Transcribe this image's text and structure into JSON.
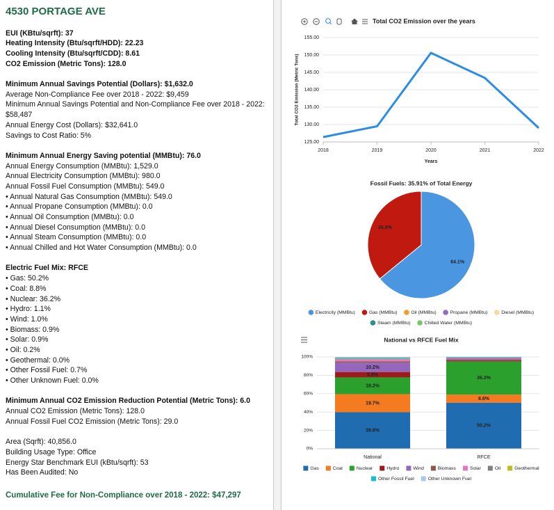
{
  "panel": {
    "title": "4530 PORTAGE AVE",
    "summary": [
      "EUI (KBtu/sqrft): 37",
      "Heating Intensity (Btu/sqrft/HDD): 22.23",
      "Cooling Intensity (Btu/sqrft/CDD): 8.61",
      "CO2 Emission (Metric Tons): 128.0"
    ],
    "sections": [
      {
        "heading": "Minimum Annual Savings Potential (Dollars): $1,632.0",
        "lines": [
          "Average Non-Compliance Fee over 2018 - 2022: $9,459",
          "Minimum Annual Savings Potential and Non-Compliance Fee over 2018 - 2022: $58,487",
          "Annual Energy Cost (Dollars): $32,641.0",
          "Savings to Cost Ratio: 5%"
        ]
      },
      {
        "heading": "Minimum Annual Energy Saving potential (MMBtu): 76.0",
        "lines": [
          "Annual Energy Consumption (MMBtu): 1,529.0",
          "Annual Electricity Consumption (MMBtu): 980.0",
          "Annual Fossil Fuel Consumption (MMBtu): 549.0",
          "• Annual Natural Gas Consumption (MMBtu): 549.0",
          "• Annual Propane Consumption (MMBtu): 0.0",
          "• Annual Oil Consumption (MMBtu): 0.0",
          "• Annual Diesel Consumption (MMBtu): 0.0",
          "• Annual Steam Consumption (MMBtu): 0.0",
          "• Annual Chilled and Hot Water Consumption (MMBtu): 0.0"
        ]
      },
      {
        "heading": "Electric Fuel Mix: RFCE",
        "lines": [
          "• Gas: 50.2%",
          "• Coal: 8.8%",
          "• Nuclear: 36.2%",
          "• Hydro: 1.1%",
          "• Wind: 1.0%",
          "• Biomass: 0.9%",
          "• Solar: 0.9%",
          "• Oil: 0.2%",
          "• Geothermal: 0.0%",
          "• Other Fossil Fuel: 0.7%",
          "• Other Unknown Fuel: 0.0%"
        ]
      },
      {
        "heading": "Minimum Annual CO2 Emission Reduction Potential (Metric Tons): 6.0",
        "lines": [
          "Annual CO2 Emission (Metric Tons): 128.0",
          "Annual Fossil Fuel CO2 Emission (Metric Tons): 29.0"
        ]
      }
    ],
    "details": [
      "Area (Sqrft): 40,856.0",
      "Building Usage Type: Office",
      "Energy Star Benchmark EUI (kBtu/sqrft): 53",
      "Has Been Audited: No"
    ],
    "footer": "Cumulative Fee for Non-Compliance over 2018 - 2022: $47,297"
  },
  "chart_data": [
    {
      "type": "line",
      "title": "Total CO2 Emission over the years",
      "categories": [
        "2018",
        "2019",
        "2020",
        "2021",
        "2022"
      ],
      "values": [
        126.4,
        129.5,
        150.6,
        143.4,
        129.0
      ],
      "color": "#2b8ce6",
      "x_label": "Years",
      "y_label": "Total CO2 Emission (Metric Tons)",
      "ylim": [
        125,
        155
      ],
      "yticks": [
        {
          "value": 125,
          "label": "125.00"
        },
        {
          "value": 130,
          "label": "130.00"
        },
        {
          "value": 135,
          "label": "135.00"
        },
        {
          "value": 140,
          "label": "140.00"
        },
        {
          "value": 145,
          "label": "145.00"
        },
        {
          "value": 150,
          "label": "150.00"
        },
        {
          "value": 155,
          "label": "155.00"
        }
      ],
      "grid": true
    },
    {
      "type": "pie",
      "title": "Fossil Fuels: 35.91% of Total Energy",
      "categories": [
        "Electricity (MMBtu)",
        "Gas (MMBtu)",
        "Oil (MMBtu)",
        "Propane (MMBtu)",
        "Diesel (MMBtu)",
        "Steam (MMBtu)",
        "Chilled Water (MMBtu)"
      ],
      "values": [
        64.1,
        35.9,
        0,
        0,
        0,
        0,
        0
      ],
      "value_labels": [
        "64.1%",
        "35.9%",
        null,
        null,
        null,
        null,
        null
      ],
      "colors": [
        "#4a96e0",
        "#c0190f",
        "#f39c26",
        "#8e6cc0",
        "#f5d9a0",
        "#2a8f8a",
        "#79c36a"
      ]
    },
    {
      "type": "bar",
      "title": "National vs RFCE Fuel Mix",
      "stacked": true,
      "categories": [
        "National",
        "RFCE"
      ],
      "series": [
        {
          "name": "Gas",
          "color": "#1f6db0",
          "values": [
            39.8,
            50.2
          ],
          "value_labels": [
            "39.8%",
            "50.2%"
          ]
        },
        {
          "name": "Coal",
          "color": "#f47b20",
          "values": [
            19.7,
            8.8
          ],
          "value_labels": [
            "19.7%",
            "8.8%"
          ]
        },
        {
          "name": "Nuclear",
          "color": "#2ca02c",
          "values": [
            18.2,
            36.2
          ],
          "value_labels": [
            "18.2%",
            "36.2%"
          ]
        },
        {
          "name": "Hydro",
          "color": "#9c1b1b",
          "values": [
            5.9,
            1.1
          ],
          "value_labels": [
            "5.9%",
            null
          ]
        },
        {
          "name": "Wind",
          "color": "#9467bd",
          "values": [
            10.2,
            1.0
          ],
          "value_labels": [
            "10.2%",
            null
          ]
        },
        {
          "name": "Biomass",
          "color": "#8c564b",
          "values": [
            1.4,
            0.9
          ]
        },
        {
          "name": "Solar",
          "color": "#e377c2",
          "values": [
            2.3,
            0.9
          ]
        },
        {
          "name": "Oil",
          "color": "#7f7f7f",
          "values": [
            0.5,
            0.2
          ]
        },
        {
          "name": "Geothermal",
          "color": "#bcbd22",
          "values": [
            0.4,
            0.0
          ]
        },
        {
          "name": "Other Fossil Fuel",
          "color": "#17becf",
          "values": [
            0.9,
            0.7
          ]
        },
        {
          "name": "Other Unknown Fuel",
          "color": "#aec7e8",
          "values": [
            0.7,
            0.0
          ]
        }
      ],
      "ylim": [
        0,
        100
      ],
      "yticks": [
        {
          "value": 0,
          "label": "0%"
        },
        {
          "value": 20,
          "label": "20%"
        },
        {
          "value": 40,
          "label": "40%"
        },
        {
          "value": 60,
          "label": "60%"
        },
        {
          "value": 80,
          "label": "80%"
        },
        {
          "value": 100,
          "label": "100%"
        }
      ],
      "grid": true
    }
  ]
}
